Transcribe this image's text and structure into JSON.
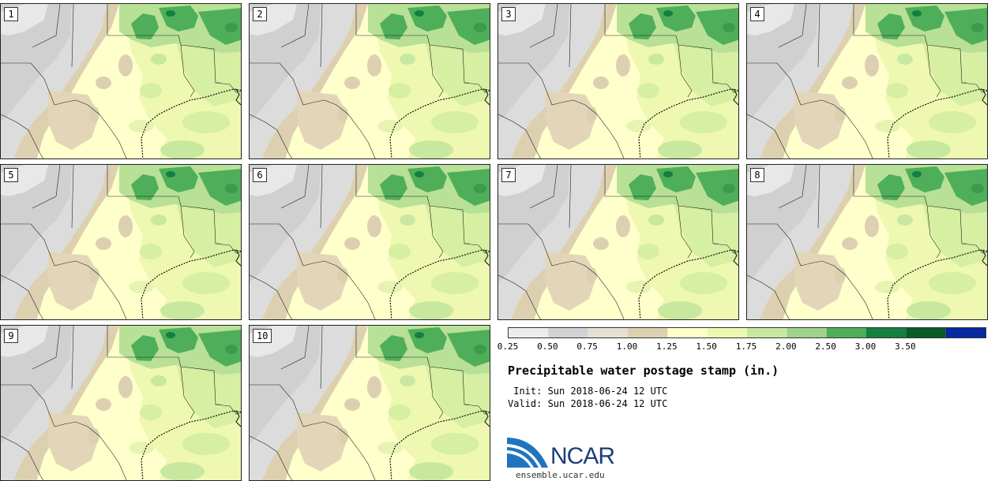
{
  "stamps": [
    {
      "label": "1"
    },
    {
      "label": "2"
    },
    {
      "label": "3"
    },
    {
      "label": "4"
    },
    {
      "label": "5"
    },
    {
      "label": "6"
    },
    {
      "label": "7"
    },
    {
      "label": "8"
    },
    {
      "label": "9"
    },
    {
      "label": "10"
    }
  ],
  "colorbar": {
    "ticks": [
      "0.25",
      "0.50",
      "0.75",
      "1.00",
      "1.25",
      "1.50",
      "1.75",
      "2.00",
      "2.50",
      "3.00",
      "3.50"
    ],
    "colors": [
      "#ececec",
      "#d2d2d2",
      "#e6e0d2",
      "#ddd0b0",
      "#ffffcc",
      "#eef8b0",
      "#c8e8a0",
      "#9fd38a",
      "#4fae5a",
      "#138040",
      "#0a5a2a",
      "#0a28a0"
    ]
  },
  "title": "Precipitable water postage stamp (in.)",
  "init_text": " Init: Sun 2018-06-24 12 UTC",
  "valid_text": "Valid: Sun 2018-06-24 12 UTC",
  "logo_text": "NCAR",
  "site": "ensemble.ucar.edu"
}
